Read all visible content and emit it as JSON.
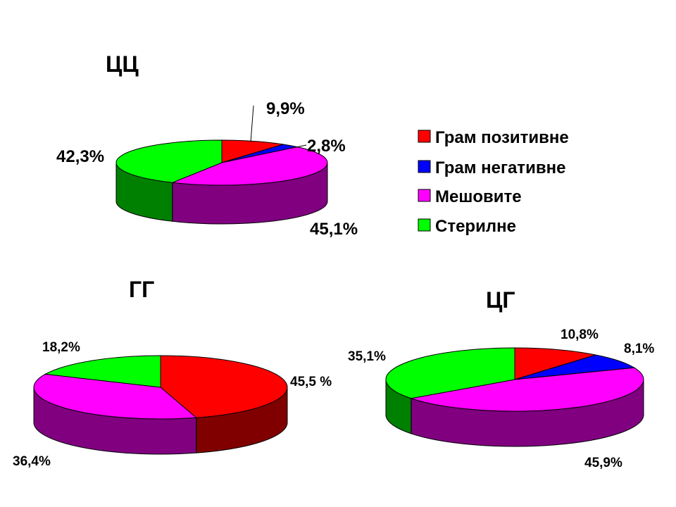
{
  "chart_data": [
    {
      "type": "pie",
      "title": "ЦЦ",
      "categories": [
        "Грам позитивне",
        "Грам негативне",
        "Мешовите",
        "Стерилне"
      ],
      "values": [
        9.9,
        2.8,
        45.1,
        42.3
      ],
      "labels": [
        "9,9%",
        "2,8%",
        "45,1%",
        "42,3%"
      ]
    },
    {
      "type": "pie",
      "title": "ГГ",
      "categories": [
        "Грам позитивне",
        "Грам негативне",
        "Мешовите",
        "Стерилне"
      ],
      "values": [
        45.5,
        0,
        36.4,
        18.2
      ],
      "labels": [
        "45,5 %",
        "",
        "36,4%",
        "18,2%"
      ]
    },
    {
      "type": "pie",
      "title": "ЦГ",
      "categories": [
        "Грам позитивне",
        "Грам негативне",
        "Мешовите",
        "Стерилне"
      ],
      "values": [
        10.8,
        8.1,
        45.9,
        35.1
      ],
      "labels": [
        "10,8%",
        "8,1%",
        "45,9%",
        "35,1%"
      ]
    }
  ],
  "legend": [
    {
      "label": "Грам позитивне",
      "color": "#ff0000"
    },
    {
      "label": "Грам негативне",
      "color": "#0000ff"
    },
    {
      "label": "Мешовите",
      "color": "#ff00ff"
    },
    {
      "label": "Стерилне",
      "color": "#00ff00"
    }
  ],
  "colors": {
    "top": [
      "#ff0000",
      "#0000ff",
      "#ff00ff",
      "#00ff00"
    ],
    "side": [
      "#800000",
      "#000080",
      "#800080",
      "#008000"
    ]
  }
}
